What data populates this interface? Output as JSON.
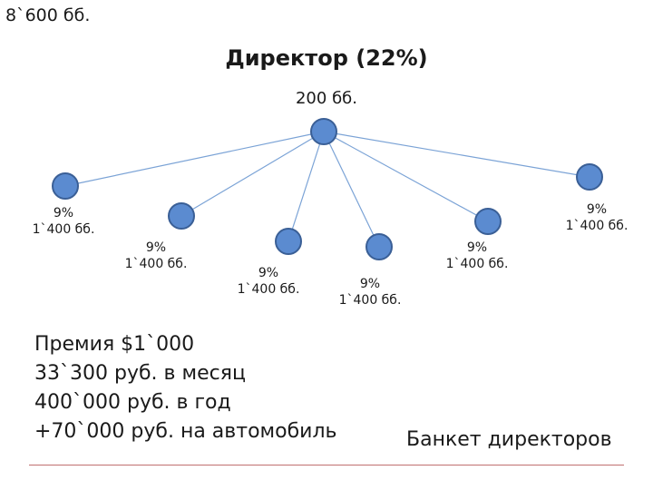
{
  "header": {
    "corner_total": "8`600 бб.",
    "title": "Директор (22%)",
    "root_amount": "200 бб."
  },
  "colors": {
    "node_fill": "#5b8bd0",
    "node_stroke": "#3a5f96",
    "edge": "#7ba3d6",
    "rule": "#c07070"
  },
  "leaves": [
    {
      "percent": "9%",
      "amount": "1`400 бб."
    },
    {
      "percent": "9%",
      "amount": "1`400 бб."
    },
    {
      "percent": "9%",
      "amount": "1`400 бб."
    },
    {
      "percent": "9%",
      "amount": "1`400 бб."
    },
    {
      "percent": "9%",
      "amount": "1`400 бб."
    },
    {
      "percent": "9%",
      "amount": "1`400 бб."
    }
  ],
  "summary": {
    "lines": [
      "Премия $1`000",
      "33`300 руб. в месяц",
      "400`000 руб. в год",
      "+70`000 руб. на автомобиль"
    ]
  },
  "banquet": "Банкет директоров"
}
